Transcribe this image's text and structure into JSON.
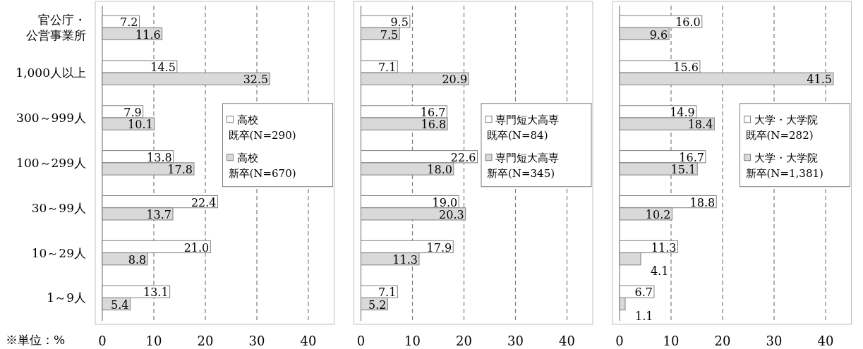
{
  "chart_data": [
    {
      "type": "bar",
      "orientation": "horizontal",
      "categories": [
        "官公庁・公営事業所",
        "1,000人以上",
        "300～999人",
        "100～299人",
        "30～99人",
        "10～29人",
        "1～9人"
      ],
      "series": [
        {
          "name": "高校既卒(N=290)",
          "color": "#ffffff",
          "values": [
            7.2,
            14.5,
            7.9,
            13.8,
            22.4,
            21.0,
            13.1
          ],
          "value_labels": [
            "7.2",
            "14.5",
            "7.9",
            "13.8",
            "22.4",
            "21.0",
            "13.1"
          ]
        },
        {
          "name": "高校新卒(N=670)",
          "color": "#d9d9d9",
          "values": [
            11.6,
            32.5,
            10.1,
            17.8,
            13.7,
            8.8,
            5.4
          ],
          "value_labels": [
            "11.6",
            "32.5",
            "10.1",
            "17.8",
            "13.7",
            "8.8",
            "5.4"
          ]
        }
      ],
      "xlim": [
        0,
        45
      ],
      "xticks": [
        0,
        10,
        20,
        30,
        40
      ],
      "grid": "x",
      "legend": "right",
      "annotations": [
        "※単位：%"
      ]
    },
    {
      "type": "bar",
      "orientation": "horizontal",
      "categories": [
        null,
        null,
        null,
        null,
        null,
        null,
        null
      ],
      "series": [
        {
          "name": "専門短大高専既卒(N=84)",
          "color": "#ffffff",
          "values": [
            9.5,
            7.1,
            16.7,
            22.6,
            19.0,
            17.9,
            7.1
          ],
          "value_labels": [
            "9.5",
            "7.1",
            "16.7",
            "22.6",
            "19.0",
            "17.9",
            "7.1"
          ]
        },
        {
          "name": "専門短大高専新卒(N=345)",
          "color": "#d9d9d9",
          "values": [
            7.5,
            20.9,
            16.8,
            18.0,
            20.3,
            11.3,
            5.2
          ],
          "value_labels": [
            "7.5",
            "20.9",
            "16.8",
            "18.0",
            "20.3",
            "11.3",
            "5.2"
          ]
        }
      ],
      "xlim": [
        0,
        45
      ],
      "xticks": [
        0,
        10,
        20,
        30,
        40
      ],
      "grid": "x",
      "legend": "right",
      "tick_labels": "x"
    },
    {
      "type": "bar",
      "orientation": "horizontal",
      "categories": [
        null,
        null,
        null,
        null,
        null,
        null,
        null
      ],
      "series": [
        {
          "name": "大学・大学院既卒(N=282)",
          "color": "#ffffff",
          "values": [
            16.0,
            15.6,
            14.9,
            16.7,
            18.8,
            11.3,
            6.7
          ],
          "value_labels": [
            "16.0",
            "15.6",
            "14.9",
            "16.7",
            "18.8",
            "11.3",
            "6.7"
          ]
        },
        {
          "name": "大学・大学院新卒(N=1,381)",
          "color": "#d9d9d9",
          "values": [
            9.6,
            41.5,
            18.4,
            15.1,
            10.2,
            4.1,
            1.1
          ],
          "value_labels": [
            "9.6",
            "41.5",
            "18.4",
            "15.1",
            "10.2",
            "4.1",
            "1.1"
          ]
        }
      ],
      "xlim": [
        0,
        45
      ],
      "xticks": [
        0,
        10,
        20,
        30,
        40
      ],
      "grid": "x",
      "legend": "right",
      "tick_labels": "x"
    }
  ]
}
